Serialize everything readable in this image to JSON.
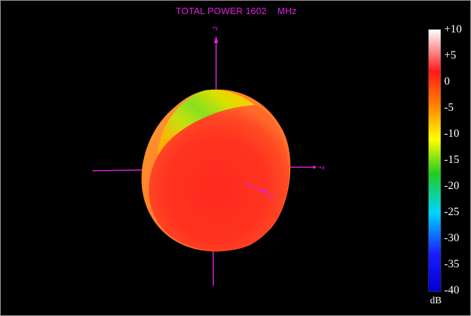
{
  "plot": {
    "title": "TOTAL POWER 1602    MHz",
    "axes": {
      "y_label": "+y",
      "x_label": "+x",
      "z_label": "+z"
    }
  },
  "colorbar": {
    "unit": "dB",
    "ticks": [
      "+10",
      "+5",
      "0",
      "-5",
      "-10",
      "-15",
      "-20",
      "-25",
      "-30",
      "-35",
      "-40"
    ],
    "range": [
      -40,
      10
    ],
    "colors": {
      "top": "#ffffff",
      "high": "#ff1a1a",
      "mid_orange": "#ff8c00",
      "yellow": "#ffff00",
      "green": "#22cc22",
      "cyan": "#00d4ff",
      "blue": "#1a1aff",
      "bottom": "#0000d0"
    }
  },
  "colors": {
    "background": "#000000",
    "axis": "#e022e0",
    "text": "#ffffff"
  }
}
